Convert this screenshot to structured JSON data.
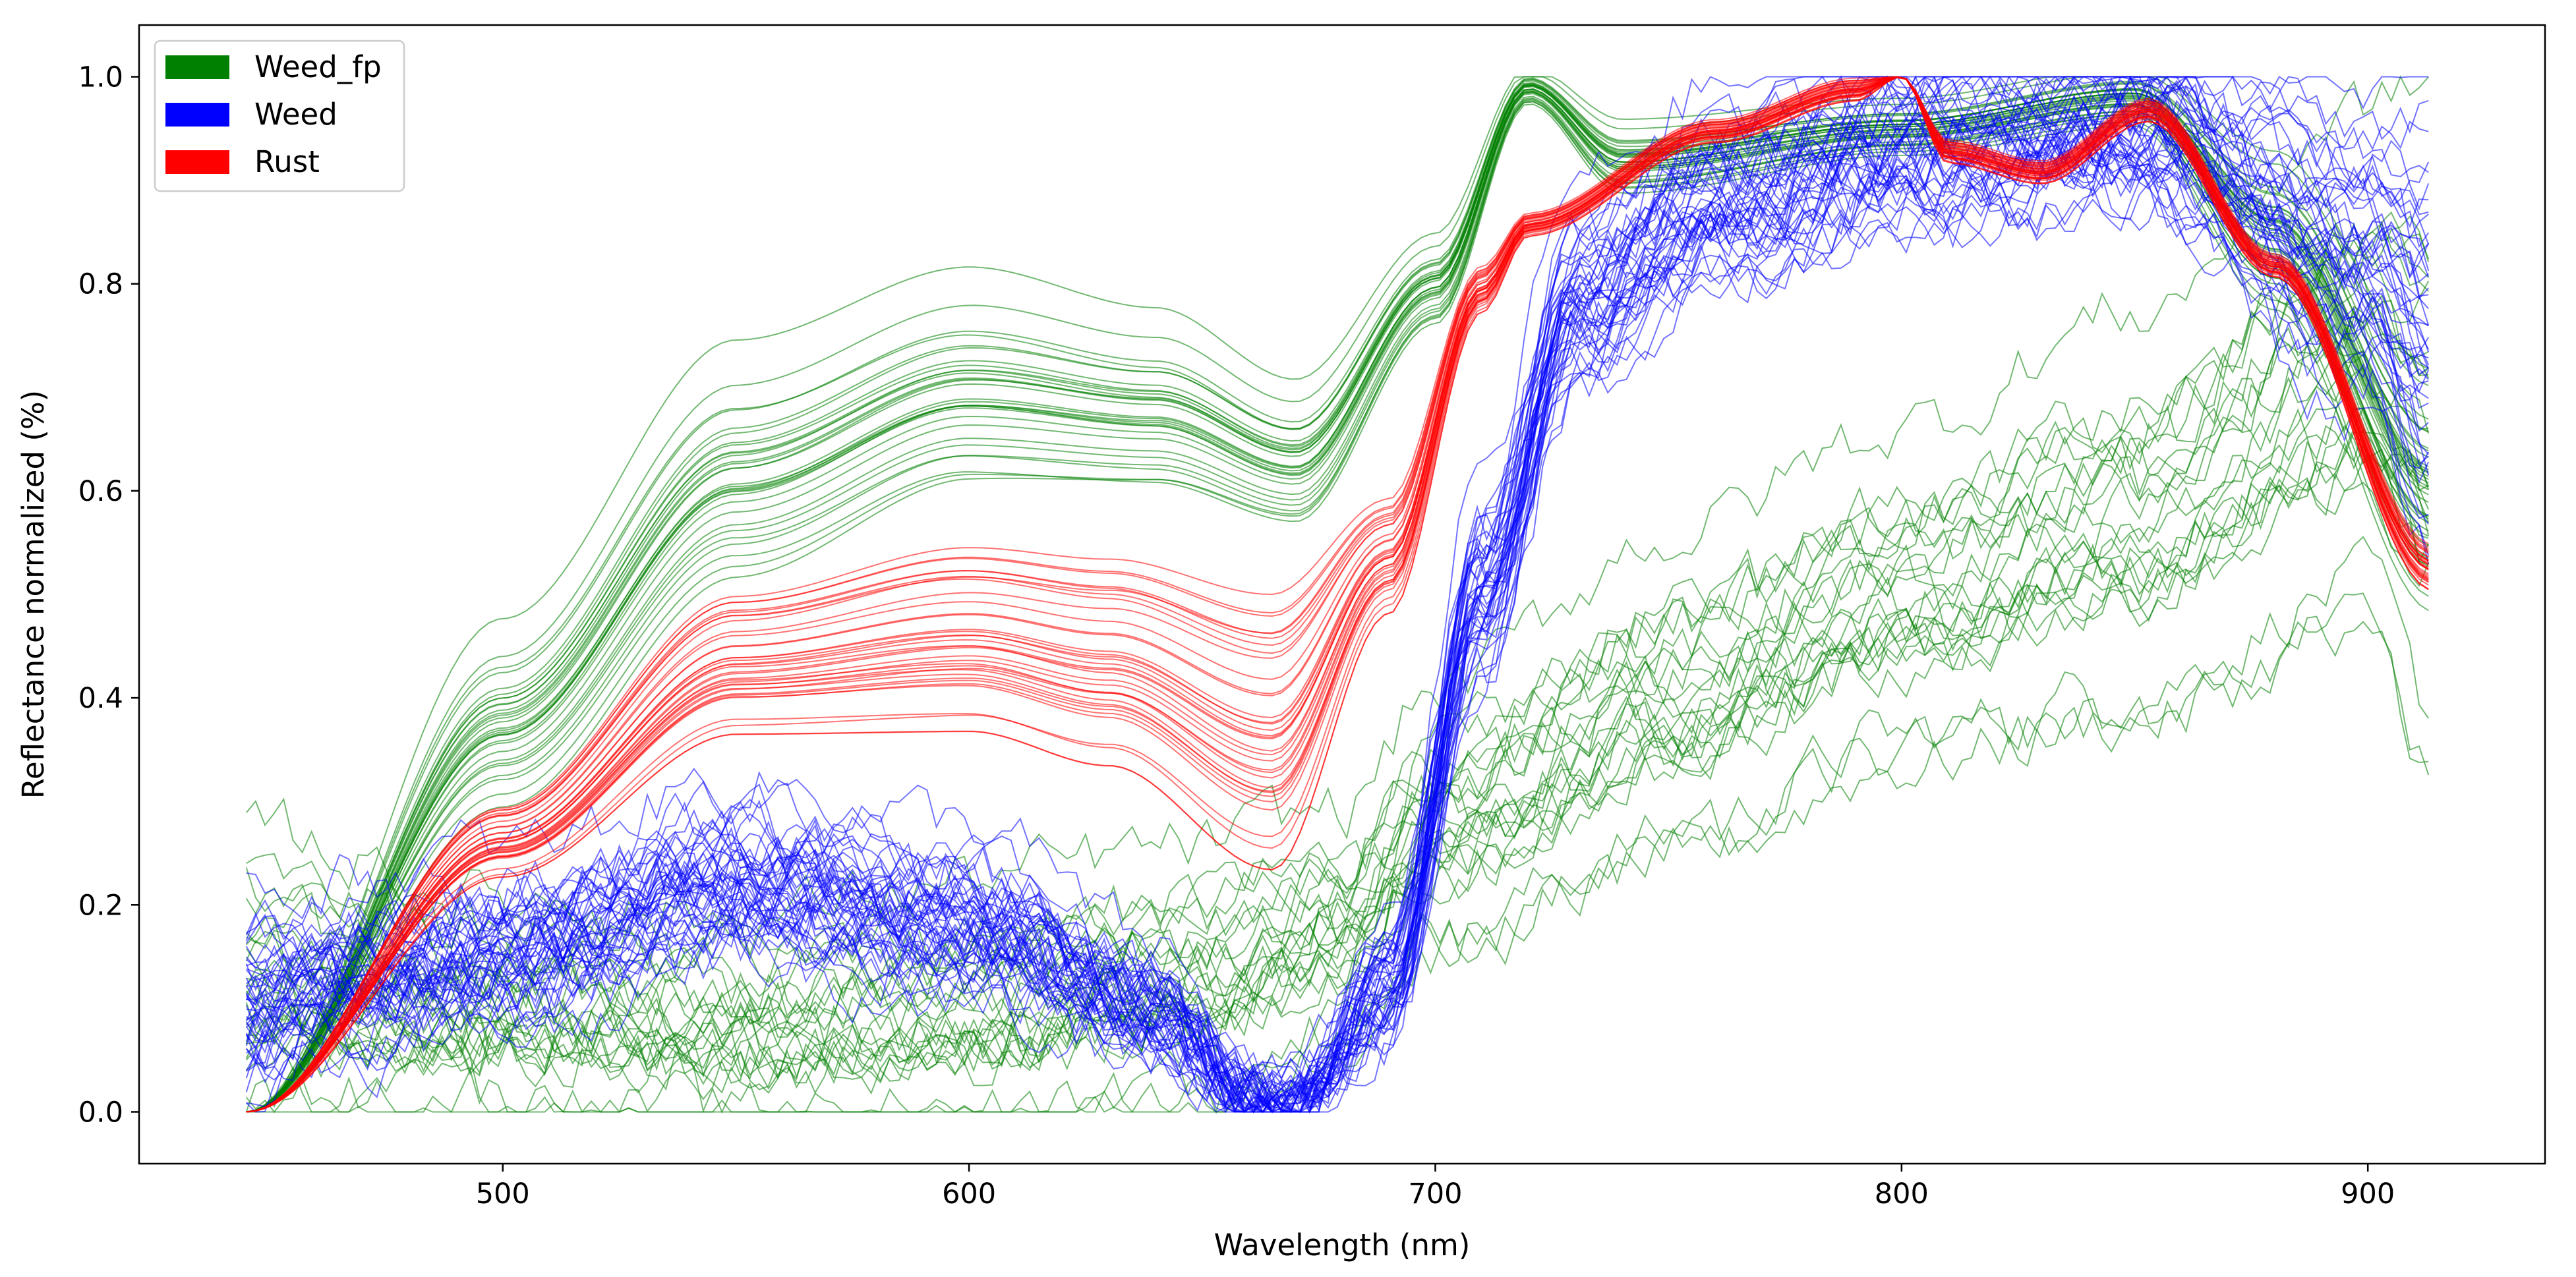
{
  "chart_data": {
    "type": "line",
    "title": "",
    "xlabel": "Wavelength (nm)",
    "ylabel": "Reflectance normalized (%)",
    "xlim": [
      422,
      938
    ],
    "ylim": [
      -0.05,
      1.05
    ],
    "xticks": [
      500,
      600,
      700,
      800,
      900
    ],
    "yticks": [
      0.0,
      0.2,
      0.4,
      0.6,
      0.8,
      1.0
    ],
    "ytick_labels": [
      "0.0",
      "0.2",
      "0.4",
      "0.6",
      "0.8",
      "1.0"
    ],
    "grid": false,
    "legend_position": "top-left",
    "legend": [
      {
        "label": "Weed_fp",
        "color": "#008000"
      },
      {
        "label": "Weed",
        "color": "#0000ff"
      },
      {
        "label": "Rust",
        "color": "#ff0000"
      }
    ],
    "wavelength_range": [
      445,
      914
    ],
    "series": [
      {
        "name": "Weed_fp",
        "color": "#008000",
        "line_count": 50,
        "groups": [
          {
            "name": "Weed_fp smooth spectra",
            "x": [
              445,
              500,
              550,
              600,
              640,
              670,
              700,
              720,
              740,
              800,
              850,
              880,
              914
            ],
            "mean": [
              0.0,
              0.38,
              0.62,
              0.7,
              0.68,
              0.63,
              0.8,
              0.99,
              0.92,
              0.95,
              0.98,
              0.85,
              0.6
            ],
            "spread": [
              0.0,
              0.1,
              0.13,
              0.12,
              0.1,
              0.08,
              0.05,
              0.02,
              0.04,
              0.03,
              0.03,
              0.08,
              0.12
            ]
          },
          {
            "name": "Weed_fp noisy spectra",
            "x": [
              445,
              500,
              550,
              600,
              650,
              680,
              700,
              750,
              800,
              850,
              900,
              914
            ],
            "mean": [
              0.15,
              0.12,
              0.1,
              0.12,
              0.15,
              0.2,
              0.3,
              0.42,
              0.52,
              0.6,
              0.75,
              0.7
            ],
            "spread": [
              0.1,
              0.07,
              0.07,
              0.08,
              0.08,
              0.07,
              0.08,
              0.1,
              0.1,
              0.12,
              0.15,
              0.2
            ]
          }
        ]
      },
      {
        "name": "Weed",
        "color": "#0000ff",
        "line_count": 45,
        "groups": [
          {
            "name": "Weed spectra",
            "x": [
              445,
              460,
              500,
              550,
              600,
              640,
              660,
              670,
              690,
              710,
              730,
              760,
              800,
              850,
              900,
              914
            ],
            "mean": [
              0.1,
              0.12,
              0.15,
              0.22,
              0.18,
              0.1,
              0.02,
              0.01,
              0.12,
              0.5,
              0.78,
              0.88,
              0.93,
              0.95,
              0.82,
              0.75
            ],
            "spread": [
              0.06,
              0.05,
              0.05,
              0.05,
              0.05,
              0.03,
              0.01,
              0.01,
              0.04,
              0.06,
              0.06,
              0.06,
              0.06,
              0.05,
              0.1,
              0.15
            ]
          }
        ]
      },
      {
        "name": "Rust",
        "color": "#ff0000",
        "line_count": 35,
        "groups": [
          {
            "name": "Rust spectra",
            "x": [
              445,
              500,
              550,
              600,
              630,
              665,
              690,
              710,
              720,
              760,
              790,
              800,
              810,
              830,
              853,
              880,
              914
            ],
            "mean": [
              0.0,
              0.27,
              0.45,
              0.48,
              0.46,
              0.4,
              0.55,
              0.8,
              0.86,
              0.95,
              0.99,
              1.0,
              0.93,
              0.91,
              0.97,
              0.82,
              0.53
            ],
            "spread": [
              0.0,
              0.03,
              0.06,
              0.08,
              0.09,
              0.12,
              0.05,
              0.02,
              0.01,
              0.01,
              0.01,
              0.0,
              0.01,
              0.01,
              0.01,
              0.01,
              0.02
            ]
          }
        ]
      }
    ]
  }
}
